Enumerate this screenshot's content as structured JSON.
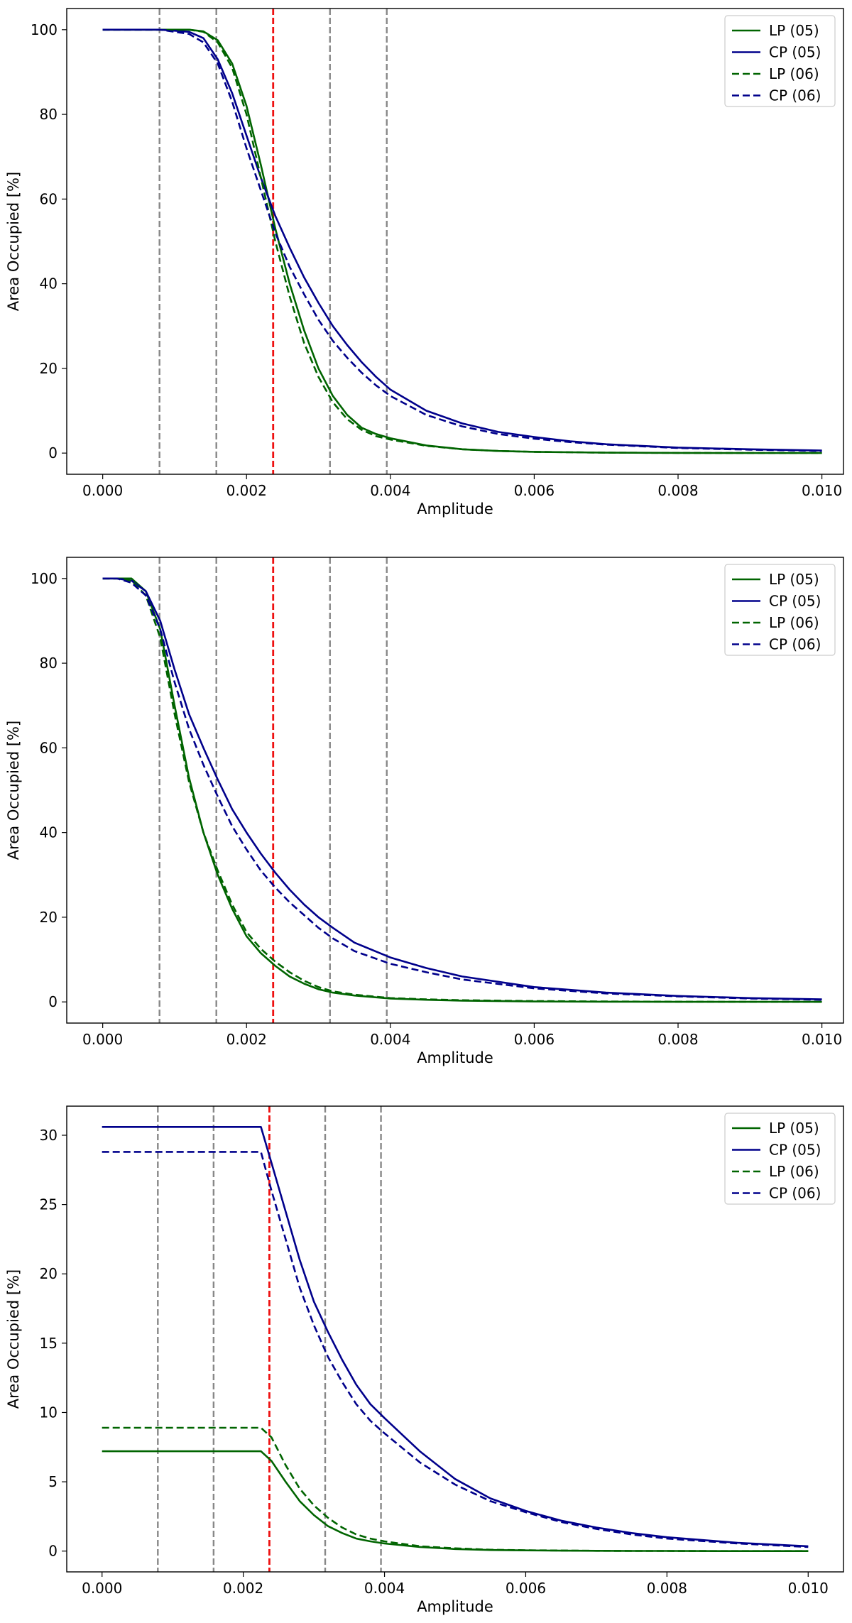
{
  "colors": {
    "lp": "#006400",
    "cp": "#00008b",
    "ref_line": "#888888",
    "highlight_line": "#ee1111",
    "axes": "#000000",
    "legend_border": "#cccccc"
  },
  "chart_data": [
    {
      "type": "line",
      "xlabel": "Amplitude",
      "ylabel": "Area Occupied [%]",
      "xlim": [
        -0.0005,
        0.0103
      ],
      "ylim": [
        -5,
        105
      ],
      "xticks": [
        0.0,
        0.002,
        0.004,
        0.006,
        0.008,
        0.01
      ],
      "xtick_labels": [
        "0.000",
        "0.002",
        "0.004",
        "0.006",
        "0.008",
        "0.010"
      ],
      "yticks": [
        0,
        20,
        40,
        60,
        80,
        100
      ],
      "ytick_labels": [
        "0",
        "20",
        "40",
        "60",
        "80",
        "100"
      ],
      "legend_position": "top-right",
      "vlines_gray": [
        0.00079,
        0.00158,
        0.00316,
        0.00395
      ],
      "vline_red": 0.00237,
      "x": [
        0.0,
        0.0008,
        0.0012,
        0.0014,
        0.0016,
        0.0018,
        0.002,
        0.0022,
        0.0024,
        0.0026,
        0.0028,
        0.003,
        0.0032,
        0.0034,
        0.0036,
        0.0038,
        0.004,
        0.0045,
        0.005,
        0.0055,
        0.006,
        0.0065,
        0.007,
        0.008,
        0.009,
        0.01
      ],
      "series": [
        {
          "name": "LP (05)",
          "style": "solid",
          "color": "lp",
          "values": [
            100,
            100,
            100,
            99.6,
            97.5,
            92,
            82,
            68,
            53,
            40,
            29,
            20,
            13.5,
            9,
            6,
            4.5,
            3.5,
            1.8,
            0.9,
            0.5,
            0.3,
            0.2,
            0.1,
            0.05,
            0.02,
            0.01
          ]
        },
        {
          "name": "CP (05)",
          "style": "solid",
          "color": "cp",
          "values": [
            100,
            100,
            99.5,
            98,
            93,
            85,
            75,
            65,
            56,
            48.5,
            41.5,
            35.5,
            30,
            25.5,
            21.5,
            18,
            15,
            10,
            7,
            5,
            3.8,
            2.8,
            2.1,
            1.3,
            0.9,
            0.6
          ]
        },
        {
          "name": "LP (06)",
          "style": "dashed",
          "color": "lp",
          "values": [
            100,
            100,
            100,
            99.5,
            97,
            91,
            80,
            65,
            50,
            37,
            26,
            18,
            12,
            8,
            5.5,
            4,
            3.2,
            1.7,
            0.9,
            0.5,
            0.3,
            0.2,
            0.1,
            0.05,
            0.02,
            0.01
          ]
        },
        {
          "name": "CP (06)",
          "style": "dashed",
          "color": "cp",
          "values": [
            100,
            100,
            99,
            97,
            92,
            83,
            72,
            62,
            52,
            44,
            37.5,
            31.5,
            26.5,
            22.5,
            19,
            16,
            13.5,
            9,
            6.3,
            4.5,
            3.4,
            2.6,
            2,
            1.2,
            0.8,
            0.5
          ]
        }
      ]
    },
    {
      "type": "line",
      "xlabel": "Amplitude",
      "ylabel": "Area Occupied [%]",
      "xlim": [
        -0.0005,
        0.0103
      ],
      "ylim": [
        -5,
        105
      ],
      "xticks": [
        0.0,
        0.002,
        0.004,
        0.006,
        0.008,
        0.01
      ],
      "xtick_labels": [
        "0.000",
        "0.002",
        "0.004",
        "0.006",
        "0.008",
        "0.010"
      ],
      "yticks": [
        0,
        20,
        40,
        60,
        80,
        100
      ],
      "ytick_labels": [
        "0",
        "20",
        "40",
        "60",
        "80",
        "100"
      ],
      "legend_position": "top-right",
      "vlines_gray": [
        0.00079,
        0.00158,
        0.00316,
        0.00395
      ],
      "vline_red": 0.00237,
      "x": [
        0.0,
        0.0002,
        0.0004,
        0.0006,
        0.0008,
        0.001,
        0.0012,
        0.0014,
        0.0016,
        0.0018,
        0.002,
        0.0022,
        0.0024,
        0.0026,
        0.0028,
        0.003,
        0.0032,
        0.0035,
        0.004,
        0.0045,
        0.005,
        0.006,
        0.007,
        0.008,
        0.009,
        0.01
      ],
      "series": [
        {
          "name": "LP (05)",
          "style": "solid",
          "color": "lp",
          "values": [
            100,
            100,
            100,
            97,
            88,
            70,
            53,
            40,
            30,
            22,
            15.5,
            11.5,
            8.5,
            6,
            4.3,
            3,
            2.2,
            1.5,
            0.8,
            0.5,
            0.3,
            0.1,
            0.05,
            0.02,
            0.01,
            0.01
          ]
        },
        {
          "name": "CP (05)",
          "style": "solid",
          "color": "cp",
          "values": [
            100,
            100,
            99.5,
            97,
            90,
            78.5,
            68,
            60,
            52.5,
            45.5,
            40,
            35,
            30.5,
            26.5,
            23,
            20,
            17.5,
            14,
            10.5,
            8,
            6,
            3.5,
            2.2,
            1.4,
            0.9,
            0.6
          ]
        },
        {
          "name": "LP (06)",
          "style": "dashed",
          "color": "lp",
          "values": [
            100,
            100,
            99.5,
            96,
            86,
            68,
            52,
            40,
            31,
            23,
            16.5,
            12.5,
            9.5,
            7,
            5,
            3.5,
            2.5,
            1.7,
            0.9,
            0.6,
            0.4,
            0.2,
            0.1,
            0.05,
            0.02,
            0.01
          ]
        },
        {
          "name": "CP (06)",
          "style": "dashed",
          "color": "cp",
          "values": [
            100,
            100,
            99,
            96,
            88,
            75.5,
            64.5,
            56,
            48.5,
            41.5,
            36,
            31,
            27,
            23.5,
            20.5,
            17.5,
            15,
            12,
            9,
            7,
            5.3,
            3.2,
            2,
            1.3,
            0.8,
            0.5
          ]
        }
      ]
    },
    {
      "type": "line",
      "xlabel": "Amplitude",
      "ylabel": "Area Occupied [%]",
      "xlim": [
        -0.0005,
        0.0105
      ],
      "ylim": [
        -1.5,
        32.1
      ],
      "xticks": [
        0.0,
        0.002,
        0.004,
        0.006,
        0.008,
        0.01
      ],
      "xtick_labels": [
        "0.000",
        "0.002",
        "0.004",
        "0.006",
        "0.008",
        "0.010"
      ],
      "yticks": [
        0,
        5,
        10,
        15,
        20,
        25,
        30
      ],
      "ytick_labels": [
        "0",
        "5",
        "10",
        "15",
        "20",
        "25",
        "30"
      ],
      "legend_position": "top-right",
      "vlines_gray": [
        0.00079,
        0.00158,
        0.00316,
        0.00395
      ],
      "vline_red": 0.00237,
      "x": [
        0.0,
        0.0022,
        0.00225,
        0.0024,
        0.0026,
        0.0028,
        0.003,
        0.0032,
        0.0034,
        0.0036,
        0.0038,
        0.004,
        0.0045,
        0.005,
        0.0055,
        0.006,
        0.0065,
        0.007,
        0.0075,
        0.008,
        0.009,
        0.01
      ],
      "series": [
        {
          "name": "LP (05)",
          "style": "solid",
          "color": "lp",
          "values": [
            7.2,
            7.2,
            7.2,
            6.5,
            5.0,
            3.6,
            2.6,
            1.8,
            1.3,
            0.9,
            0.7,
            0.55,
            0.3,
            0.15,
            0.08,
            0.05,
            0.03,
            0.02,
            0.01,
            0.01,
            0.0,
            0.0
          ]
        },
        {
          "name": "CP (05)",
          "style": "solid",
          "color": "cp",
          "values": [
            30.6,
            30.6,
            30.6,
            28.0,
            24.5,
            21.0,
            18.0,
            15.8,
            13.8,
            12.0,
            10.6,
            9.6,
            7.2,
            5.2,
            3.8,
            2.9,
            2.2,
            1.7,
            1.3,
            1.0,
            0.6,
            0.35
          ]
        },
        {
          "name": "LP (06)",
          "style": "dashed",
          "color": "lp",
          "values": [
            8.9,
            8.9,
            8.9,
            8.2,
            6.2,
            4.5,
            3.3,
            2.4,
            1.7,
            1.2,
            0.9,
            0.7,
            0.35,
            0.2,
            0.1,
            0.06,
            0.04,
            0.02,
            0.01,
            0.01,
            0.0,
            0.0
          ]
        },
        {
          "name": "CP (06)",
          "style": "dashed",
          "color": "cp",
          "values": [
            28.8,
            28.8,
            28.8,
            26.0,
            22.5,
            19.0,
            16.3,
            14.0,
            12.2,
            10.6,
            9.4,
            8.5,
            6.4,
            4.8,
            3.6,
            2.8,
            2.1,
            1.6,
            1.2,
            0.9,
            0.55,
            0.3
          ]
        }
      ]
    }
  ]
}
